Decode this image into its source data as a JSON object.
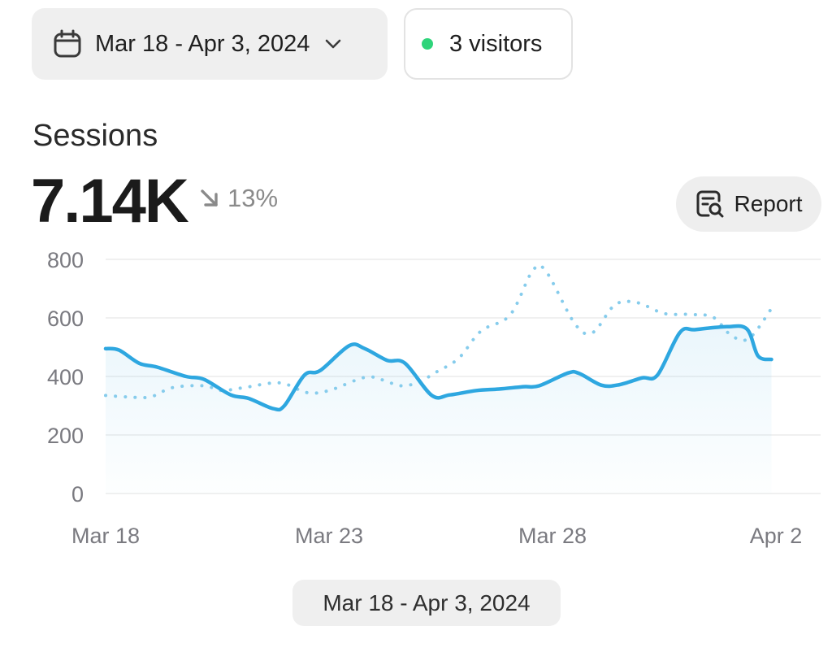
{
  "date_picker": {
    "label": "Mar 18 - Apr 3, 2024",
    "icon": "calendar-icon",
    "chevron": "chevron-down-icon"
  },
  "visitors": {
    "label": "3 visitors",
    "dot_color": "#2ed47a"
  },
  "metric": {
    "title": "Sessions",
    "value": "7.14K",
    "change": "13%",
    "change_direction": "down",
    "change_icon": "arrow-down-right-icon"
  },
  "report_button": {
    "label": "Report",
    "icon": "report-search-icon"
  },
  "range_footer": {
    "label": "Mar 18 - Apr 3, 2024"
  },
  "colors": {
    "current": "#2ea7e0",
    "previous": "#86ccec",
    "grid": "#ececec",
    "axis_text": "#7a7a80"
  },
  "chart_data": {
    "type": "line",
    "title": "",
    "xlabel": "",
    "ylabel": "",
    "ylim": [
      0,
      800
    ],
    "yticks": [
      "0",
      "200",
      "400",
      "600",
      "800"
    ],
    "xticks": [
      {
        "label": "Mar 18",
        "x": 0
      },
      {
        "label": "Mar 23",
        "x": 5
      },
      {
        "label": "Mar 28",
        "x": 10
      },
      {
        "label": "Apr 2",
        "x": 15
      }
    ],
    "grid": true,
    "series": [
      {
        "style": "solid",
        "color": "#2ea7e0",
        "area": true,
        "points": [
          [
            0,
            495
          ],
          [
            0.3,
            490
          ],
          [
            0.75,
            445
          ],
          [
            1.15,
            432
          ],
          [
            1.8,
            400
          ],
          [
            2.2,
            390
          ],
          [
            2.8,
            337
          ],
          [
            3.2,
            325
          ],
          [
            3.75,
            290
          ],
          [
            4.0,
            300
          ],
          [
            4.45,
            405
          ],
          [
            4.8,
            420
          ],
          [
            5.45,
            505
          ],
          [
            5.8,
            495
          ],
          [
            6.3,
            455
          ],
          [
            6.7,
            445
          ],
          [
            7.3,
            335
          ],
          [
            7.7,
            337
          ],
          [
            8.3,
            352
          ],
          [
            8.8,
            357
          ],
          [
            9.35,
            365
          ],
          [
            9.7,
            368
          ],
          [
            10.35,
            412
          ],
          [
            10.6,
            410
          ],
          [
            11.1,
            370
          ],
          [
            11.5,
            372
          ],
          [
            12.0,
            395
          ],
          [
            12.35,
            405
          ],
          [
            12.85,
            550
          ],
          [
            13.2,
            560
          ],
          [
            13.9,
            570
          ],
          [
            14.35,
            562
          ],
          [
            14.6,
            470
          ],
          [
            14.9,
            458
          ]
        ]
      },
      {
        "style": "dotted",
        "color": "#86ccec",
        "area": false,
        "points": [
          [
            0,
            335
          ],
          [
            0.5,
            330
          ],
          [
            1.0,
            330
          ],
          [
            1.5,
            362
          ],
          [
            2.2,
            368
          ],
          [
            2.6,
            352
          ],
          [
            3.1,
            362
          ],
          [
            3.9,
            378
          ],
          [
            4.5,
            345
          ],
          [
            5.0,
            352
          ],
          [
            5.8,
            397
          ],
          [
            6.2,
            388
          ],
          [
            6.6,
            368
          ],
          [
            7.0,
            380
          ],
          [
            7.4,
            415
          ],
          [
            7.9,
            462
          ],
          [
            8.4,
            555
          ],
          [
            9.05,
            610
          ],
          [
            9.55,
            760
          ],
          [
            9.85,
            760
          ],
          [
            10.5,
            580
          ],
          [
            10.9,
            550
          ],
          [
            11.4,
            645
          ],
          [
            11.9,
            652
          ],
          [
            12.5,
            615
          ],
          [
            13.1,
            612
          ],
          [
            13.6,
            602
          ],
          [
            14.0,
            540
          ],
          [
            14.4,
            530
          ],
          [
            14.9,
            632
          ]
        ]
      }
    ]
  }
}
